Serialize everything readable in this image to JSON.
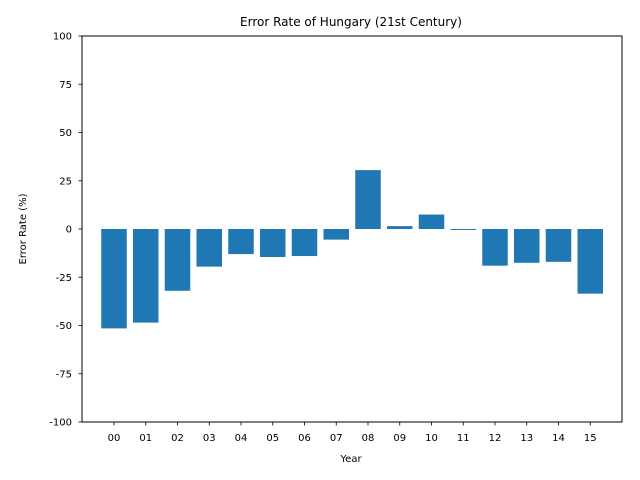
{
  "chart_data": {
    "type": "bar",
    "title": "Error Rate of Hungary (21st Century)",
    "xlabel": "Year",
    "ylabel": "Error Rate (%)",
    "categories": [
      "00",
      "01",
      "02",
      "03",
      "04",
      "05",
      "06",
      "07",
      "08",
      "09",
      "10",
      "11",
      "12",
      "13",
      "14",
      "15"
    ],
    "values": [
      -51.5,
      -48.5,
      -32.0,
      -19.5,
      -13.0,
      -14.5,
      -14.0,
      -5.5,
      30.5,
      1.5,
      7.5,
      -0.5,
      -19.0,
      -17.5,
      -17.0,
      -33.5
    ],
    "ylim": [
      -100,
      100
    ],
    "yticks": [
      "-100",
      "-75",
      "-50",
      "-25",
      "0",
      "25",
      "50",
      "75",
      "100"
    ],
    "ytick_values": [
      -100,
      -75,
      -50,
      -25,
      0,
      25,
      50,
      75,
      100
    ],
    "bar_color": "#1f77b4",
    "grid": false,
    "legend": "none"
  }
}
